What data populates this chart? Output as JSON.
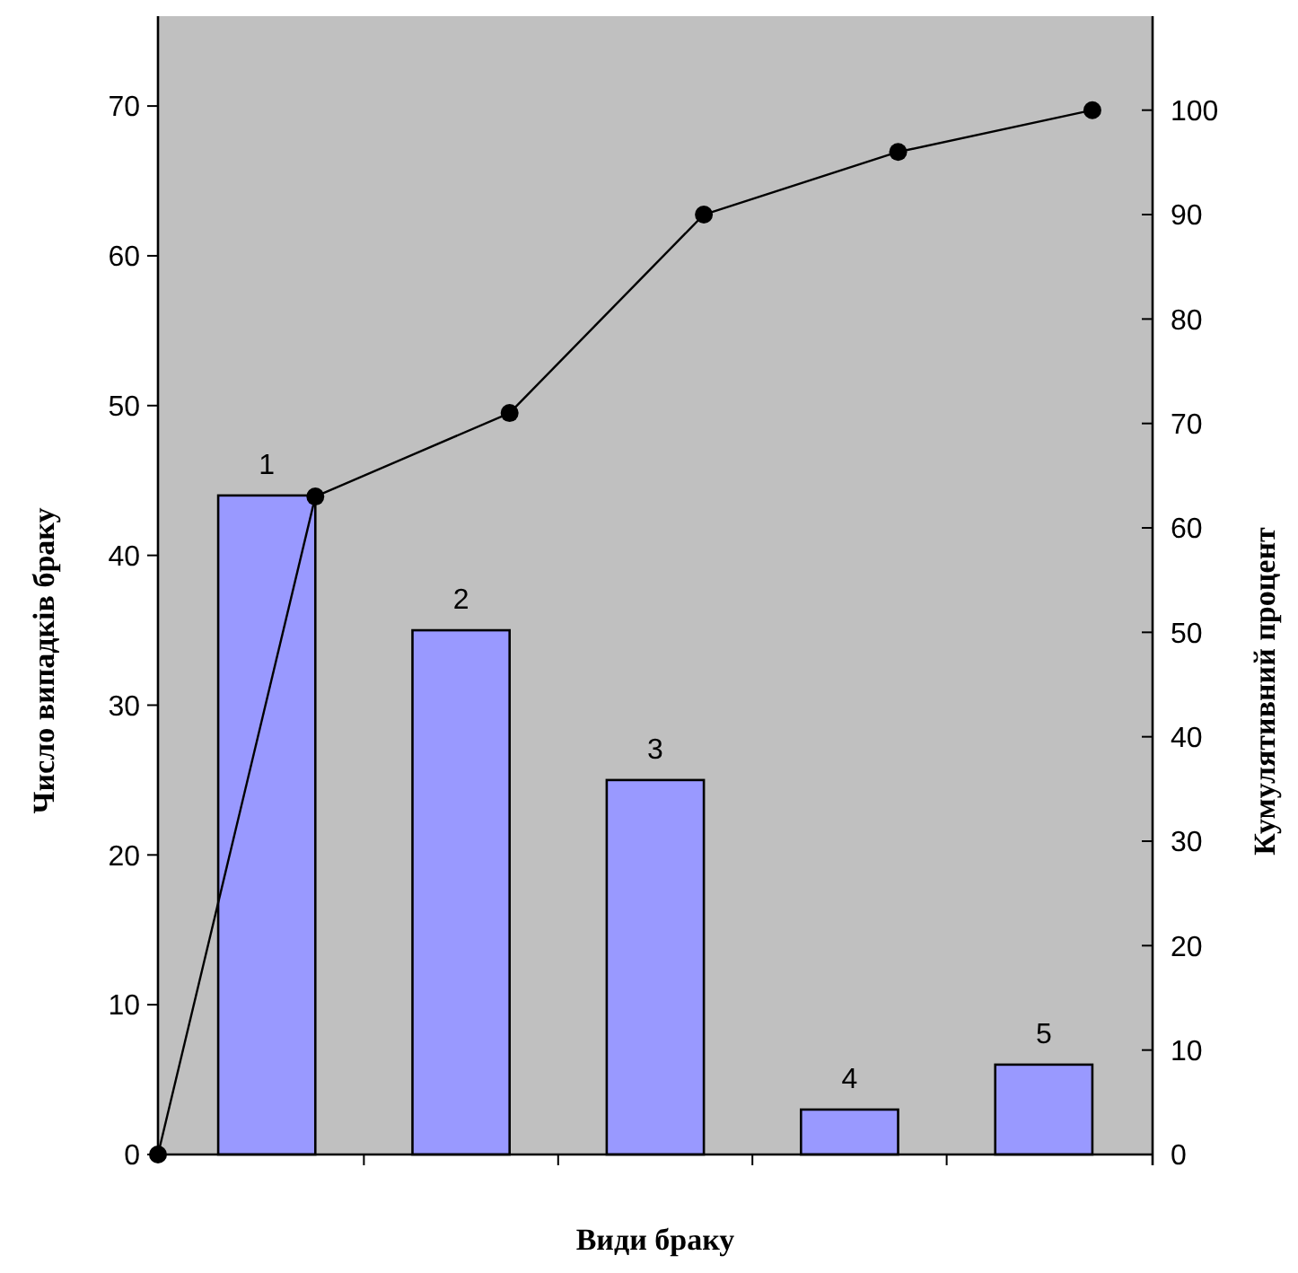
{
  "chart_data": {
    "type": "bar",
    "xlabel": "Види браку",
    "ylabel": "Число випадків браку",
    "y2label": "Кумулятивний процент",
    "categories": [
      null,
      null,
      null,
      null,
      null
    ],
    "series": [
      {
        "color": "#9999ff",
        "values": [
          44,
          35,
          25,
          3,
          6
        ]
      },
      {
        "type": "line",
        "axis": "y2",
        "color": "#000000",
        "values": [
          63,
          71,
          90,
          96,
          100
        ]
      }
    ],
    "annotations": [
      "1",
      "2",
      "3",
      "4",
      "5"
    ],
    "ylim": [
      0,
      76
    ],
    "yticks": [
      0,
      10,
      20,
      30,
      40,
      50,
      60,
      70
    ],
    "y2lim": [
      0,
      109
    ],
    "y2ticks": [
      0,
      10,
      20,
      30,
      40,
      50,
      60,
      70,
      80,
      90,
      100
    ],
    "grid": false,
    "legend": false,
    "marker": "circle",
    "line_style": "solid"
  }
}
